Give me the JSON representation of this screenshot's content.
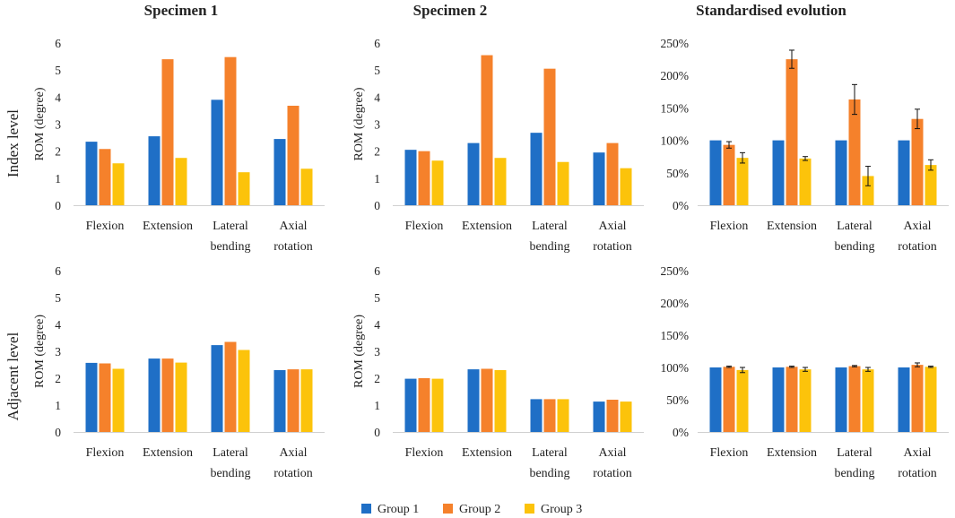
{
  "figure": {
    "columns": [
      "Specimen 1",
      "Specimen 2",
      "Standardised evolution"
    ],
    "rows": [
      "Index level",
      "Adjacent level"
    ]
  },
  "legend": {
    "items": [
      {
        "label": "Group 1",
        "color": "#1f6fc6"
      },
      {
        "label": "Group 2",
        "color": "#f5812b"
      },
      {
        "label": "Group 3",
        "color": "#fcc30b"
      }
    ]
  },
  "chart_data": [
    {
      "id": "s1-index",
      "type": "bar",
      "title": "Specimen 1",
      "row": "Index level",
      "ylabel": "ROM (degree)",
      "ylim": [
        0,
        6
      ],
      "yticks": [
        "0",
        "1",
        "2",
        "3",
        "4",
        "5",
        "6"
      ],
      "categories": [
        [
          "Flexion"
        ],
        [
          "Extension"
        ],
        [
          "Lateral",
          "bending"
        ],
        [
          "Axial",
          "rotation"
        ]
      ],
      "series": [
        {
          "name": "Group 1",
          "values": [
            2.35,
            2.55,
            3.9,
            2.45
          ]
        },
        {
          "name": "Group 2",
          "values": [
            2.08,
            5.4,
            5.48,
            3.68
          ]
        },
        {
          "name": "Group 3",
          "values": [
            1.55,
            1.75,
            1.22,
            1.35
          ]
        }
      ]
    },
    {
      "id": "s2-index",
      "type": "bar",
      "title": "Specimen 2",
      "row": "Index level",
      "ylabel": "ROM (degree)",
      "ylim": [
        0,
        6
      ],
      "yticks": [
        "0",
        "1",
        "2",
        "3",
        "4",
        "5",
        "6"
      ],
      "categories": [
        [
          "Flexion"
        ],
        [
          "Extension"
        ],
        [
          "Lateral",
          "bending"
        ],
        [
          "Axial",
          "rotation"
        ]
      ],
      "series": [
        {
          "name": "Group 1",
          "values": [
            2.05,
            2.3,
            2.68,
            1.95
          ]
        },
        {
          "name": "Group 2",
          "values": [
            2.0,
            5.55,
            5.05,
            2.3
          ]
        },
        {
          "name": "Group 3",
          "values": [
            1.65,
            1.75,
            1.6,
            1.37
          ]
        }
      ]
    },
    {
      "id": "std-index",
      "type": "bar",
      "title": "Standardised evolution",
      "row": "Index level",
      "ylabel": "",
      "ylim": [
        0,
        250
      ],
      "yticks": [
        "0%",
        "50%",
        "100%",
        "150%",
        "200%",
        "250%"
      ],
      "categories": [
        [
          "Flexion"
        ],
        [
          "Extension"
        ],
        [
          "Lateral",
          "bending"
        ],
        [
          "Axial",
          "rotation"
        ]
      ],
      "series": [
        {
          "name": "Group 1",
          "values": [
            100,
            100,
            100,
            100
          ],
          "errors": [
            0,
            0,
            0,
            0
          ]
        },
        {
          "name": "Group 2",
          "values": [
            93,
            225,
            163,
            133
          ],
          "errors": [
            5,
            14,
            23,
            15
          ]
        },
        {
          "name": "Group 3",
          "values": [
            73,
            72,
            45,
            62
          ],
          "errors": [
            8,
            3,
            15,
            8
          ]
        }
      ]
    },
    {
      "id": "s1-adjacent",
      "type": "bar",
      "title": "",
      "row": "Adjacent level",
      "ylabel": "ROM (degree)",
      "ylim": [
        0,
        6
      ],
      "yticks": [
        "0",
        "1",
        "2",
        "3",
        "4",
        "5",
        "6"
      ],
      "categories": [
        [
          "Flexion"
        ],
        [
          "Extension"
        ],
        [
          "Lateral",
          "bending"
        ],
        [
          "Axial",
          "rotation"
        ]
      ],
      "series": [
        {
          "name": "Group 1",
          "values": [
            2.57,
            2.73,
            3.23,
            2.3
          ]
        },
        {
          "name": "Group 2",
          "values": [
            2.55,
            2.73,
            3.35,
            2.33
          ]
        },
        {
          "name": "Group 3",
          "values": [
            2.35,
            2.58,
            3.05,
            2.33
          ]
        }
      ]
    },
    {
      "id": "s2-adjacent",
      "type": "bar",
      "title": "",
      "row": "Adjacent level",
      "ylabel": "ROM (degree)",
      "ylim": [
        0,
        6
      ],
      "yticks": [
        "0",
        "1",
        "2",
        "3",
        "4",
        "5",
        "6"
      ],
      "categories": [
        [
          "Flexion"
        ],
        [
          "Extension"
        ],
        [
          "Lateral",
          "bending"
        ],
        [
          "Axial",
          "rotation"
        ]
      ],
      "series": [
        {
          "name": "Group 1",
          "values": [
            1.98,
            2.33,
            1.22,
            1.13
          ]
        },
        {
          "name": "Group 2",
          "values": [
            2.0,
            2.35,
            1.22,
            1.2
          ]
        },
        {
          "name": "Group 3",
          "values": [
            1.98,
            2.3,
            1.22,
            1.13
          ]
        }
      ]
    },
    {
      "id": "std-adjacent",
      "type": "bar",
      "title": "",
      "row": "Adjacent level",
      "ylabel": "",
      "ylim": [
        0,
        250
      ],
      "yticks": [
        "0%",
        "50%",
        "100%",
        "150%",
        "200%",
        "250%"
      ],
      "categories": [
        [
          "Flexion"
        ],
        [
          "Extension"
        ],
        [
          "Lateral",
          "bending"
        ],
        [
          "Axial",
          "rotation"
        ]
      ],
      "series": [
        {
          "name": "Group 1",
          "values": [
            100,
            100,
            100,
            100
          ],
          "errors": [
            0,
            0,
            0,
            0
          ]
        },
        {
          "name": "Group 2",
          "values": [
            101,
            101,
            102,
            104
          ],
          "errors": [
            1,
            1,
            1,
            3
          ]
        },
        {
          "name": "Group 3",
          "values": [
            96,
            97,
            97,
            101
          ],
          "errors": [
            4,
            3,
            3,
            1
          ]
        }
      ]
    }
  ]
}
